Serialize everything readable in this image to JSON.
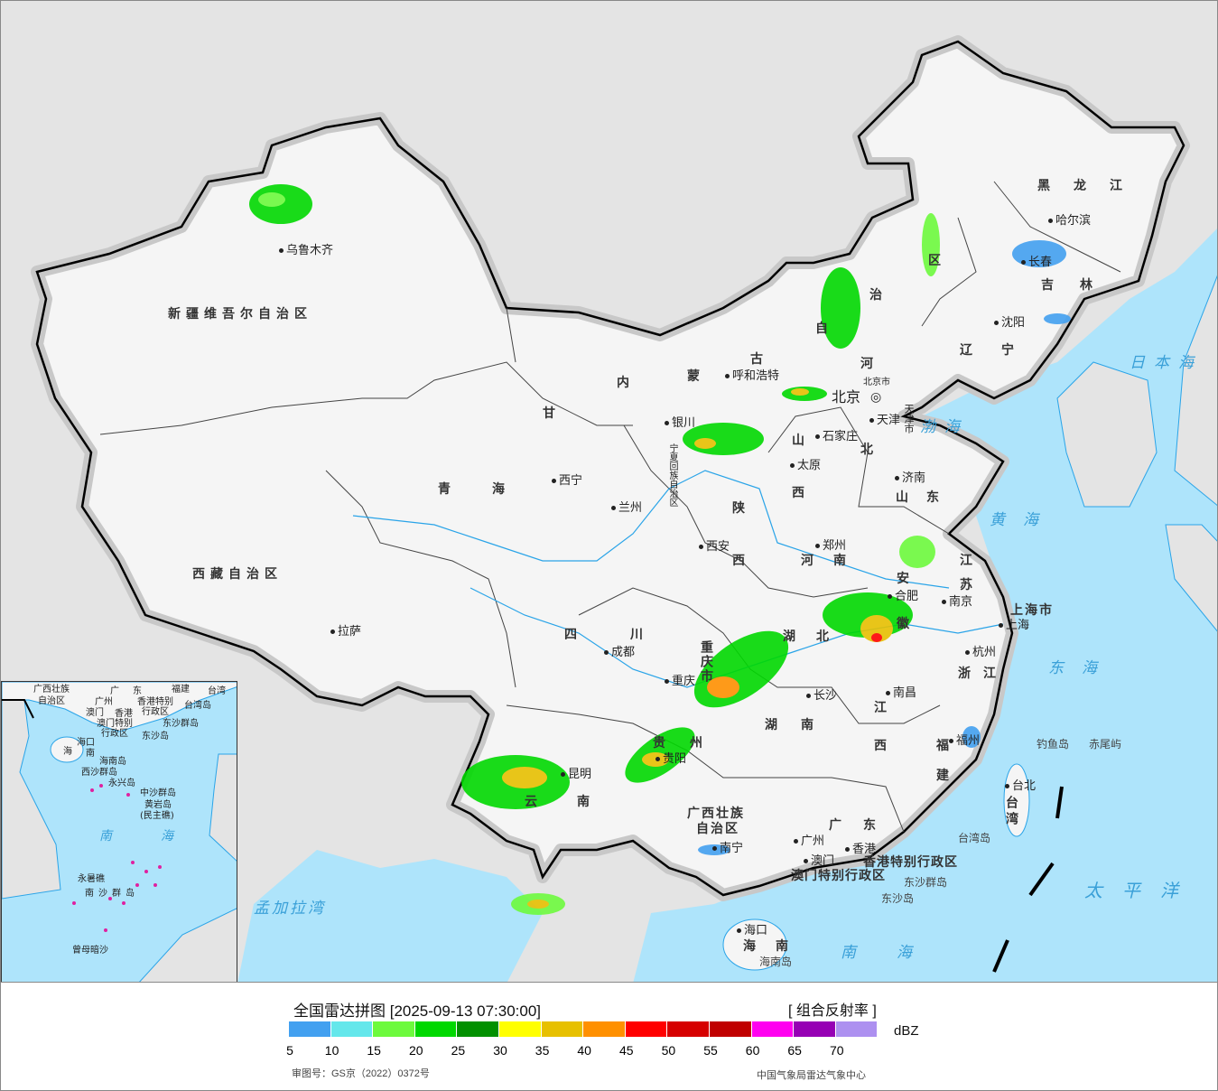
{
  "colors": {
    "sea": "#aee4fb",
    "land_neighbor": "#e4e4e4",
    "china": "#f5f5f5",
    "border": "#000000",
    "river": "#2aa4e8"
  },
  "provinces": [
    "新疆维吾尔自治区",
    "西藏自治区",
    "青　　海",
    "甘",
    "内",
    "蒙",
    "古",
    "自",
    "治",
    "区",
    "黑　龙　江",
    "吉",
    "林",
    "辽",
    "宁",
    "河",
    "北",
    "山",
    "西",
    "山",
    "东",
    "宁夏回族自治区",
    "陕",
    "西",
    "河",
    "南",
    "江",
    "苏",
    "安",
    "徽",
    "湖",
    "北",
    "四",
    "川",
    "重庆市",
    "贵",
    "州",
    "云",
    "南",
    "广西壮族",
    "自治区",
    "广",
    "东",
    "湖",
    "南",
    "江",
    "西",
    "福",
    "建",
    "浙",
    "江",
    "上海市",
    "台湾",
    "海",
    "南",
    "香港特别行政区",
    "澳门特别行政区",
    "北京市",
    "天津市"
  ],
  "cities": [
    "乌鲁木齐",
    "拉萨",
    "西宁",
    "兰州",
    "银川",
    "呼和浩特",
    "石家庄",
    "太原",
    "济南",
    "郑州",
    "西安",
    "成都",
    "重庆",
    "长沙",
    "南昌",
    "杭州",
    "南京",
    "合肥",
    "上海",
    "福州",
    "台北",
    "贵阳",
    "昆明",
    "南宁",
    "广州",
    "香港",
    "澳门",
    "海口",
    "哈尔滨",
    "长春",
    "沈阳",
    "天津"
  ],
  "capital": "北京",
  "islands": [
    "钓鱼岛",
    "赤尾屿",
    "台湾岛",
    "东沙群岛",
    "东沙岛",
    "海南岛"
  ],
  "seas": [
    "日本海",
    "渤海",
    "黄海",
    "东海",
    "太平洋",
    "南海",
    "孟加拉湾"
  ],
  "inset": [
    "广西壮族",
    "自治区",
    "广",
    "东",
    "福建",
    "台湾",
    "广州",
    "香港特别",
    "行政区",
    "台湾岛",
    "澳门",
    "香港",
    "澳门特别",
    "行政区",
    "东沙群岛",
    "东沙岛",
    "海口",
    "海",
    "南",
    "海南岛",
    "西沙群岛",
    "永兴岛",
    "中沙群岛",
    "黄岩岛",
    "(民主礁)",
    "南　海",
    "永暑礁",
    "南沙群岛",
    "曾母暗沙"
  ],
  "legend": {
    "title": "全国雷达拼图 [2025-09-13 07:30:00]",
    "product": "[ 组合反射率 ]",
    "unit": "dBZ",
    "colors": [
      "#42a0f0",
      "#64e7eb",
      "#6dfa3d",
      "#00d800",
      "#019000",
      "#ffff00",
      "#e7c000",
      "#ff9000",
      "#ff0000",
      "#d60000",
      "#c00000",
      "#ff00f0",
      "#9600b4",
      "#ad90f0"
    ],
    "ticks": [
      "5",
      "10",
      "15",
      "20",
      "25",
      "30",
      "35",
      "40",
      "45",
      "50",
      "55",
      "60",
      "65",
      "70"
    ],
    "approval": "审图号：GS京（2022）0372号",
    "source": "中国气象局雷达气象中心"
  }
}
